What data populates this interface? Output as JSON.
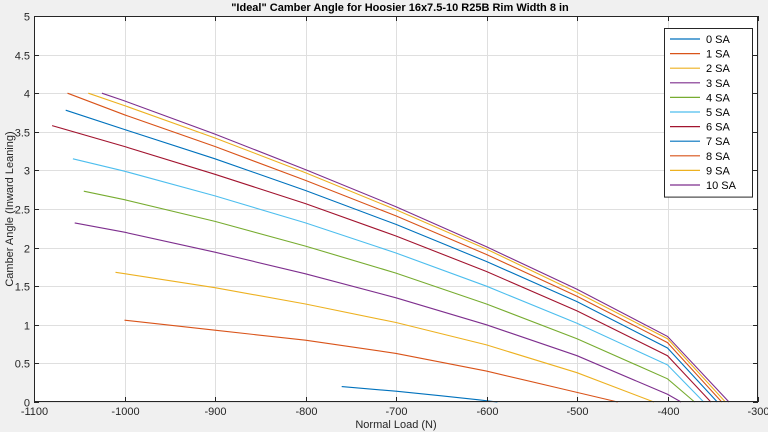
{
  "chart_data": {
    "type": "line",
    "title": "\"Ideal\" Camber Angle for Hoosier 16x7.5-10 R25B Rim Width 8 in",
    "xlabel": "Normal Load (N)",
    "ylabel": "Camber Angle (Inward Leaning)",
    "xlim": [
      -1100,
      -300
    ],
    "ylim": [
      0,
      5
    ],
    "xticks": [
      "-1100",
      "-1000",
      "-900",
      "-800",
      "-700",
      "-600",
      "-500",
      "-400",
      "-300"
    ],
    "yticks": [
      "0",
      "0.5",
      "1",
      "1.5",
      "2",
      "2.5",
      "3",
      "3.5",
      "4",
      "4.5",
      "5"
    ],
    "grid": true,
    "legend_position": "top-right",
    "colors": {
      "background": "#f0f0f0",
      "plot_area": "#ffffff"
    },
    "series": [
      {
        "name": "0 SA",
        "color": "#0072bd",
        "x": [
          -760,
          -700,
          -650,
          -610,
          -588
        ],
        "y": [
          0.2,
          0.14,
          0.08,
          0.03,
          0
        ]
      },
      {
        "name": "1 SA",
        "color": "#d95319",
        "x": [
          -1000,
          -900,
          -800,
          -700,
          -600,
          -520,
          -455
        ],
        "y": [
          1.06,
          0.93,
          0.8,
          0.63,
          0.4,
          0.18,
          0
        ]
      },
      {
        "name": "2 SA",
        "color": "#edb120",
        "x": [
          -1010,
          -900,
          -800,
          -700,
          -600,
          -500,
          -415
        ],
        "y": [
          1.68,
          1.48,
          1.27,
          1.03,
          0.74,
          0.38,
          0
        ]
      },
      {
        "name": "3 SA",
        "color": "#7e2f8e",
        "x": [
          -1055,
          -1000,
          -900,
          -800,
          -700,
          -600,
          -500,
          -400,
          -385
        ],
        "y": [
          2.32,
          2.2,
          1.94,
          1.66,
          1.35,
          1.0,
          0.6,
          0.1,
          0
        ]
      },
      {
        "name": "4 SA",
        "color": "#77ac30",
        "x": [
          -1045,
          -1000,
          -900,
          -800,
          -700,
          -600,
          -500,
          -400,
          -370
        ],
        "y": [
          2.73,
          2.62,
          2.34,
          2.02,
          1.67,
          1.27,
          0.82,
          0.3,
          0
        ]
      },
      {
        "name": "5 SA",
        "color": "#4dbeee",
        "x": [
          -1057,
          -1000,
          -900,
          -800,
          -700,
          -600,
          -500,
          -400,
          -360
        ],
        "y": [
          3.15,
          2.99,
          2.67,
          2.32,
          1.93,
          1.5,
          1.02,
          0.48,
          0
        ]
      },
      {
        "name": "6 SA",
        "color": "#a2142f",
        "x": [
          -1080,
          -1000,
          -900,
          -800,
          -700,
          -600,
          -500,
          -400,
          -352
        ],
        "y": [
          3.58,
          3.31,
          2.95,
          2.57,
          2.15,
          1.69,
          1.18,
          0.6,
          0
        ]
      },
      {
        "name": "7 SA",
        "color": "#0072bd",
        "x": [
          -1065,
          -1000,
          -900,
          -800,
          -700,
          -600,
          -500,
          -400,
          -345
        ],
        "y": [
          3.78,
          3.53,
          3.15,
          2.74,
          2.3,
          1.82,
          1.3,
          0.7,
          0
        ]
      },
      {
        "name": "8 SA",
        "color": "#d95319",
        "x": [
          -1063,
          -1000,
          -900,
          -800,
          -700,
          -600,
          -500,
          -400,
          -340
        ],
        "y": [
          4.0,
          3.72,
          3.31,
          2.87,
          2.41,
          1.91,
          1.37,
          0.77,
          0
        ]
      },
      {
        "name": "9 SA",
        "color": "#edb120",
        "x": [
          -1040,
          -1000,
          -900,
          -800,
          -700,
          -600,
          -500,
          -400,
          -336
        ],
        "y": [
          4.0,
          3.84,
          3.42,
          2.97,
          2.49,
          1.98,
          1.42,
          0.82,
          0
        ]
      },
      {
        "name": "10 SA",
        "color": "#7e2f8e",
        "x": [
          -1025,
          -1000,
          -900,
          -800,
          -700,
          -600,
          -500,
          -400,
          -332
        ],
        "y": [
          4.0,
          3.9,
          3.47,
          3.01,
          2.53,
          2.01,
          1.46,
          0.85,
          0
        ]
      }
    ]
  }
}
